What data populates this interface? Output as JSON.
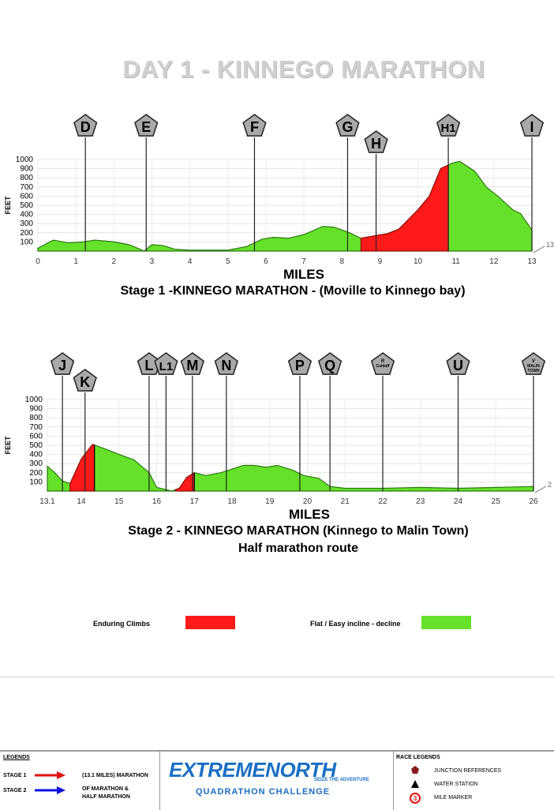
{
  "title": "DAY 1 - KINNEGO  MARATHON",
  "chart_data": [
    {
      "type": "area",
      "title": "Stage 1 -KINNEGO MARATHON - (Moville to Kinnego bay)",
      "xlabel": "MILES",
      "ylabel": "FEET",
      "xlim": [
        0,
        13
      ],
      "ylim": [
        0,
        1000
      ],
      "xticks": [
        "0",
        "1",
        "2",
        "3",
        "4",
        "5",
        "6",
        "7",
        "8",
        "9",
        "10",
        "11",
        "12",
        "13"
      ],
      "yticks": [
        "100",
        "200",
        "300",
        "400",
        "500",
        "600",
        "700",
        "800",
        "900",
        "1000"
      ],
      "end_label": "13",
      "points": [
        [
          0,
          30
        ],
        [
          0.4,
          120
        ],
        [
          0.8,
          90
        ],
        [
          1.2,
          100
        ],
        [
          1.5,
          120
        ],
        [
          2,
          100
        ],
        [
          2.4,
          70
        ],
        [
          2.8,
          0
        ],
        [
          3.0,
          70
        ],
        [
          3.3,
          60
        ],
        [
          3.6,
          20
        ],
        [
          4,
          10
        ],
        [
          5,
          10
        ],
        [
          5.5,
          50
        ],
        [
          5.9,
          130
        ],
        [
          6.2,
          150
        ],
        [
          6.6,
          140
        ],
        [
          7,
          180
        ],
        [
          7.5,
          270
        ],
        [
          7.8,
          260
        ],
        [
          8.2,
          200
        ],
        [
          8.5,
          140
        ],
        [
          8.9,
          170
        ],
        [
          9.2,
          190
        ],
        [
          9.5,
          240
        ],
        [
          10,
          450
        ],
        [
          10.3,
          600
        ],
        [
          10.6,
          900
        ],
        [
          10.9,
          960
        ],
        [
          11.1,
          980
        ],
        [
          11.5,
          870
        ],
        [
          11.8,
          700
        ],
        [
          12.1,
          600
        ],
        [
          12.5,
          450
        ],
        [
          12.7,
          410
        ],
        [
          13,
          230
        ]
      ],
      "climb_range": [
        8.5,
        10.8
      ],
      "markers": [
        {
          "label": "D",
          "x": 1.25
        },
        {
          "label": "E",
          "x": 2.85
        },
        {
          "label": "F",
          "x": 5.7
        },
        {
          "label": "G",
          "x": 8.15
        },
        {
          "label": "H",
          "x": 8.9
        },
        {
          "label": "H1",
          "x": 10.8
        },
        {
          "label": "I",
          "x": 13
        }
      ]
    },
    {
      "type": "area",
      "title": "Stage 2 - KINNEGO MARATHON (Kinnego to Malin Town)",
      "subtitle": "Half marathon route",
      "xlabel": "MILES",
      "ylabel": "FEET",
      "xlim": [
        13.1,
        26
      ],
      "ylim": [
        0,
        1000
      ],
      "xticks": [
        "13.1",
        "14",
        "15",
        "16",
        "17",
        "18",
        "19",
        "20",
        "21",
        "22",
        "23",
        "24",
        "25",
        "26"
      ],
      "yticks": [
        "100",
        "200",
        "300",
        "400",
        "500",
        "600",
        "700",
        "800",
        "900",
        "1000"
      ],
      "end_label": "2",
      "points": [
        [
          13.1,
          270
        ],
        [
          13.3,
          200
        ],
        [
          13.5,
          110
        ],
        [
          13.7,
          80
        ],
        [
          14,
          350
        ],
        [
          14.3,
          510
        ],
        [
          14.7,
          450
        ],
        [
          15,
          400
        ],
        [
          15.4,
          340
        ],
        [
          15.8,
          200
        ],
        [
          16,
          40
        ],
        [
          16.4,
          0
        ],
        [
          16.6,
          30
        ],
        [
          16.8,
          150
        ],
        [
          17,
          200
        ],
        [
          17.3,
          170
        ],
        [
          17.7,
          200
        ],
        [
          18,
          240
        ],
        [
          18.3,
          280
        ],
        [
          18.6,
          280
        ],
        [
          18.9,
          260
        ],
        [
          19.2,
          280
        ],
        [
          19.6,
          230
        ],
        [
          19.9,
          170
        ],
        [
          20.3,
          140
        ],
        [
          20.6,
          50
        ],
        [
          21,
          30
        ],
        [
          22,
          30
        ],
        [
          23,
          40
        ],
        [
          24,
          30
        ],
        [
          25,
          40
        ],
        [
          26,
          50
        ]
      ],
      "climb_ranges": [
        [
          13.7,
          14.35
        ],
        [
          16.5,
          17.0
        ]
      ],
      "markers": [
        {
          "label": "J",
          "x": 13.5
        },
        {
          "label": "K",
          "x": 14.1
        },
        {
          "label": "L",
          "x": 15.8
        },
        {
          "label": "L1",
          "x": 16.25
        },
        {
          "label": "M",
          "x": 16.95
        },
        {
          "label": "N",
          "x": 17.85
        },
        {
          "label": "P",
          "x": 19.8
        },
        {
          "label": "Q",
          "x": 20.6
        },
        {
          "label": "R",
          "x": 22,
          "sublabel": "Culdaff"
        },
        {
          "label": "U",
          "x": 24
        },
        {
          "label": "V",
          "x": 26,
          "sublabel": "MALIN TOWN"
        }
      ]
    }
  ],
  "legend": {
    "climb_label": "Enduring Climbs",
    "flat_label": "Flat / Easy incline - decline",
    "climb_color": "#ff1a1a",
    "flat_color": "#66e12a"
  },
  "footer": {
    "legends_title": "LEGENDS",
    "stage1_label": "STAGE 1",
    "stage1_desc": "(13.1 MILES) MARATHON",
    "stage2_label": "STAGE 2",
    "stage2_desc_1": "OF MARATHON &",
    "stage2_desc_2": "HALF MARATHON",
    "logo_text_1": "EXTREMENORTH",
    "logo_tagline": "SEIZE THE ADVENTURE",
    "logo_text_2": "QUADRATHON CHALLENGE",
    "race_legends_title": "RACE LEGENDS",
    "items": [
      "JUNCTION REFERENCES",
      "WATER STATION",
      "MILE MARKER"
    ],
    "mile_marker_num": "3"
  }
}
